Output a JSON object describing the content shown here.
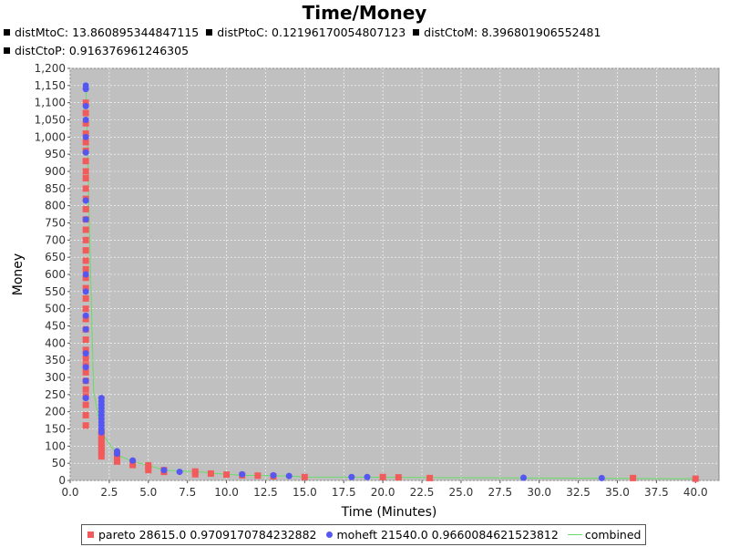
{
  "header": {
    "dists": [
      "distMtoC: 13.860895344847115",
      "distPtoC: 0.12196170054807123",
      "distCtoM: 8.396801906552481",
      "distCtoP: 0.916376961246305"
    ]
  },
  "legend": {
    "items": [
      {
        "label": "pareto 28615.0 0.9709170784232882",
        "marker": "square",
        "color": "#f25b5b"
      },
      {
        "label": "moheft 21540.0 0.9660084621523812",
        "marker": "circle",
        "color": "#5656f2"
      },
      {
        "label": "combined",
        "marker": "line",
        "color": "#66dd66"
      }
    ]
  },
  "colors": {
    "plot_background": "#c0c0c0",
    "gridline": "#ffffff",
    "pareto": "#f25b5b",
    "moheft": "#5656f2",
    "combined": "#66dd66"
  },
  "chart_data": {
    "type": "scatter",
    "title": "Time/Money",
    "xlabel": "Time (Minutes)",
    "ylabel": "Money",
    "xlim": [
      0,
      41.5
    ],
    "ylim": [
      0,
      1200
    ],
    "xticks": [
      "0.0",
      "2.5",
      "5.0",
      "7.5",
      "10.0",
      "12.5",
      "15.0",
      "17.5",
      "20.0",
      "22.5",
      "25.0",
      "27.5",
      "30.0",
      "32.5",
      "35.0",
      "37.5",
      "40.0"
    ],
    "yticks": [
      "0",
      "50",
      "100",
      "150",
      "200",
      "250",
      "300",
      "350",
      "400",
      "450",
      "500",
      "550",
      "600",
      "650",
      "700",
      "750",
      "800",
      "850",
      "900",
      "950",
      "1,000",
      "1,050",
      "1,100",
      "1,150",
      "1,200"
    ],
    "grid": true,
    "legend_position": "bottom",
    "series": [
      {
        "name": "pareto 28615.0 0.9709170784232882",
        "marker": "square",
        "points": [
          [
            1,
            160
          ],
          [
            1,
            190
          ],
          [
            1,
            220
          ],
          [
            1,
            245
          ],
          [
            1,
            265
          ],
          [
            1,
            290
          ],
          [
            1,
            315
          ],
          [
            1,
            335
          ],
          [
            1,
            355
          ],
          [
            1,
            380
          ],
          [
            1,
            410
          ],
          [
            1,
            440
          ],
          [
            1,
            470
          ],
          [
            1,
            500
          ],
          [
            1,
            530
          ],
          [
            1,
            560
          ],
          [
            1,
            590
          ],
          [
            1,
            615
          ],
          [
            1,
            640
          ],
          [
            1,
            670
          ],
          [
            1,
            700
          ],
          [
            1,
            730
          ],
          [
            1,
            760
          ],
          [
            1,
            790
          ],
          [
            1,
            820
          ],
          [
            1,
            850
          ],
          [
            1,
            880
          ],
          [
            1,
            900
          ],
          [
            1,
            930
          ],
          [
            1,
            960
          ],
          [
            1,
            985
          ],
          [
            1,
            1010
          ],
          [
            1,
            1040
          ],
          [
            1,
            1070
          ],
          [
            1,
            1100
          ],
          [
            2,
            70
          ],
          [
            2,
            80
          ],
          [
            2,
            90
          ],
          [
            2,
            100
          ],
          [
            2,
            110
          ],
          [
            2,
            120
          ],
          [
            2,
            130
          ],
          [
            2,
            140
          ],
          [
            3,
            55
          ],
          [
            3,
            62
          ],
          [
            3,
            68
          ],
          [
            3,
            75
          ],
          [
            4,
            45
          ],
          [
            4,
            52
          ],
          [
            5,
            30
          ],
          [
            5,
            38
          ],
          [
            5,
            44
          ],
          [
            6,
            25
          ],
          [
            6,
            30
          ],
          [
            8,
            18
          ],
          [
            8,
            26
          ],
          [
            9,
            20
          ],
          [
            10,
            17
          ],
          [
            11,
            15
          ],
          [
            12,
            14
          ],
          [
            13,
            12
          ],
          [
            15,
            10
          ],
          [
            20,
            10
          ],
          [
            21,
            9
          ],
          [
            23,
            7
          ],
          [
            36,
            7
          ],
          [
            40,
            5
          ]
        ]
      },
      {
        "name": "moheft 21540.0 0.9660084621523812",
        "marker": "circle",
        "points": [
          [
            1,
            240
          ],
          [
            1,
            290
          ],
          [
            1,
            330
          ],
          [
            1,
            370
          ],
          [
            1,
            440
          ],
          [
            1,
            480
          ],
          [
            1,
            550
          ],
          [
            1,
            600
          ],
          [
            1,
            760
          ],
          [
            1,
            815
          ],
          [
            1,
            955
          ],
          [
            1,
            1000
          ],
          [
            1,
            1050
          ],
          [
            1,
            1090
          ],
          [
            1,
            1140
          ],
          [
            1,
            1150
          ],
          [
            2,
            140
          ],
          [
            2,
            150
          ],
          [
            2,
            160
          ],
          [
            2,
            170
          ],
          [
            2,
            180
          ],
          [
            2,
            190
          ],
          [
            2,
            200
          ],
          [
            2,
            210
          ],
          [
            2,
            220
          ],
          [
            2,
            230
          ],
          [
            2,
            240
          ],
          [
            3,
            78
          ],
          [
            3,
            85
          ],
          [
            4,
            58
          ],
          [
            6,
            30
          ],
          [
            7,
            25
          ],
          [
            11,
            18
          ],
          [
            13,
            15
          ],
          [
            14,
            13
          ],
          [
            18,
            10
          ],
          [
            19,
            10
          ],
          [
            29,
            8
          ],
          [
            34,
            7
          ]
        ]
      },
      {
        "name": "combined",
        "marker": "line",
        "points": [
          [
            1,
            1150
          ],
          [
            1.5,
            260
          ],
          [
            2,
            140
          ],
          [
            3,
            75
          ],
          [
            4,
            55
          ],
          [
            5,
            44
          ],
          [
            6,
            30
          ],
          [
            8,
            26
          ],
          [
            10,
            18
          ],
          [
            11,
            15
          ],
          [
            14,
            13
          ],
          [
            15,
            10
          ],
          [
            40,
            5
          ]
        ]
      }
    ]
  }
}
